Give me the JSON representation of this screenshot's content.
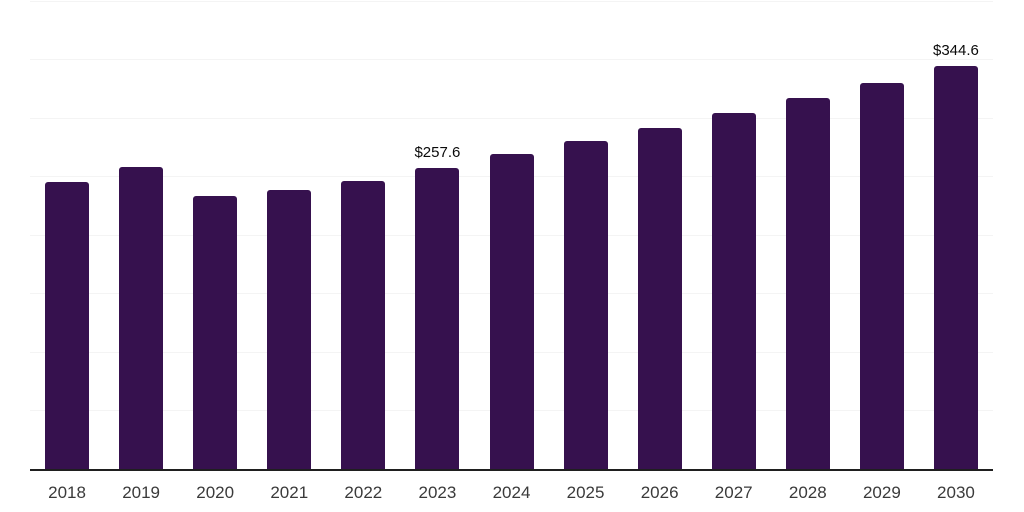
{
  "chart_data": {
    "type": "bar",
    "categories": [
      "2018",
      "2019",
      "2020",
      "2021",
      "2022",
      "2023",
      "2024",
      "2025",
      "2026",
      "2027",
      "2028",
      "2029",
      "2030"
    ],
    "values": [
      246.2,
      258.4,
      234.0,
      239.1,
      246.9,
      257.6,
      269.4,
      280.5,
      291.7,
      304.5,
      317.9,
      330.7,
      344.6
    ],
    "data_labels": {
      "2023": "$257.6",
      "2030": "$344.6"
    },
    "xlabel": "",
    "ylabel": "",
    "ylim": [
      0,
      400
    ],
    "grid_step": 50,
    "grid": true,
    "legend": false,
    "colors": {
      "bar": "#36114E",
      "gridline": "#F4F4F4",
      "axis": "#1F1F1F",
      "tick_label": "#3A3A3A",
      "data_label": "#0A0A0A",
      "background": "#FFFFFF"
    }
  }
}
